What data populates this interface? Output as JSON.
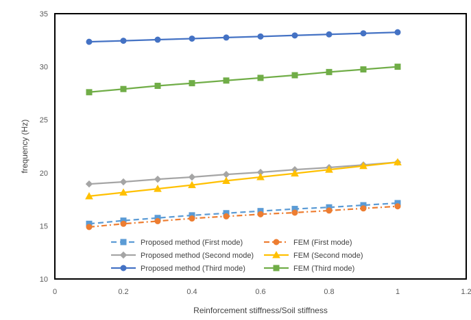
{
  "chart_data": {
    "type": "line",
    "xlabel": "Reinforcement stiffness/Soil stiffness",
    "ylabel": "frequency (Hz)",
    "xlim": [
      0,
      1.2
    ],
    "ylim": [
      10,
      35
    ],
    "x_ticks": [
      "0",
      "0.2",
      "0.4",
      "0.6",
      "0.8",
      "1",
      "1.2"
    ],
    "y_ticks": [
      "10",
      "15",
      "20",
      "25",
      "30",
      "35"
    ],
    "grid": false,
    "legend_position": "bottom-inside",
    "x": [
      0.1,
      0.2,
      0.3,
      0.4,
      0.5,
      0.6,
      0.7,
      0.8,
      0.9,
      1.0
    ],
    "series": [
      {
        "name": "Proposed method (First mode)",
        "color": "#5B9BD5",
        "dash": "dashed",
        "marker": "square",
        "values": [
          15.2,
          15.5,
          15.75,
          16.0,
          16.2,
          16.4,
          16.6,
          16.75,
          16.95,
          17.15
        ]
      },
      {
        "name": "FEM (First mode)",
        "color": "#ED7D31",
        "dash": "dashdot",
        "marker": "circle",
        "values": [
          14.9,
          15.2,
          15.45,
          15.7,
          15.9,
          16.1,
          16.25,
          16.45,
          16.65,
          16.85
        ]
      },
      {
        "name": "Proposed method (Second mode)",
        "color": "#A5A5A5",
        "dash": "solid",
        "marker": "diamond",
        "values": [
          18.95,
          19.15,
          19.4,
          19.6,
          19.85,
          20.05,
          20.3,
          20.5,
          20.75,
          21.0
        ]
      },
      {
        "name": "FEM (Second mode)",
        "color": "#FFC000",
        "dash": "solid",
        "marker": "triangle",
        "values": [
          17.8,
          18.15,
          18.5,
          18.85,
          19.25,
          19.6,
          19.95,
          20.3,
          20.65,
          21.0
        ]
      },
      {
        "name": "Proposed method (Third mode)",
        "color": "#4472C4",
        "dash": "solid",
        "marker": "circle",
        "values": [
          32.35,
          32.45,
          32.55,
          32.65,
          32.75,
          32.85,
          32.95,
          33.05,
          33.15,
          33.25
        ]
      },
      {
        "name": "FEM (Third mode)",
        "color": "#70AD47",
        "dash": "solid",
        "marker": "square",
        "values": [
          27.6,
          27.9,
          28.2,
          28.45,
          28.7,
          28.95,
          29.2,
          29.5,
          29.75,
          30.0
        ]
      }
    ]
  }
}
